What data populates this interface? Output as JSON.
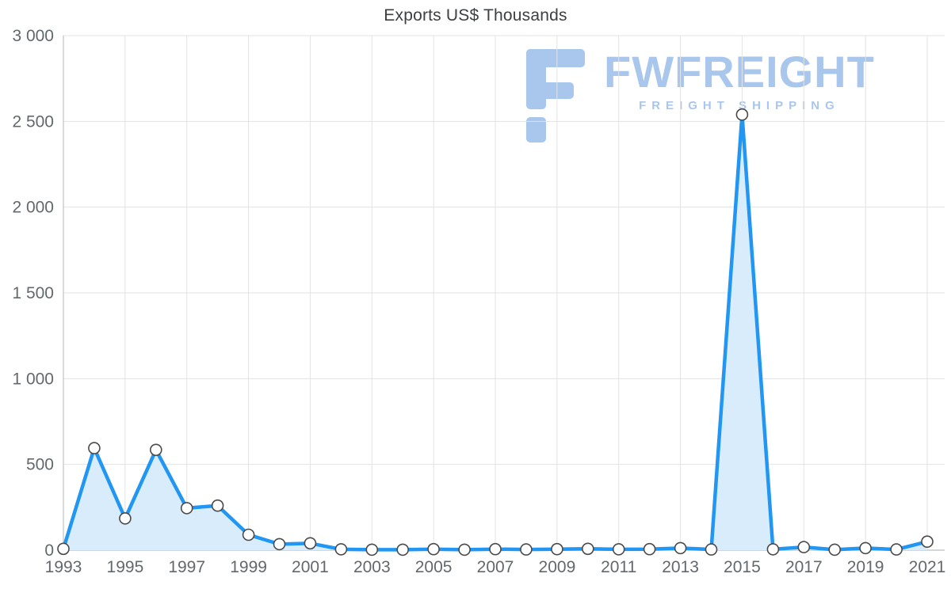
{
  "title": "Exports US$ Thousands",
  "watermark": {
    "brand": "FWFREIGHT",
    "tagline": "FREIGHT SHIPPING",
    "color": "#a5c3ec"
  },
  "colors": {
    "line": "#2196f3",
    "area": "#d9ecfc",
    "grid": "#e3e3e3",
    "axis": "#c9c9c9",
    "tick_text": "#63686d",
    "marker_fill": "#ffffff",
    "marker_stroke": "#4a4a4a"
  },
  "chart_data": {
    "type": "area",
    "title": "Exports US$ Thousands",
    "xlabel": "",
    "ylabel": "",
    "x": [
      1993,
      1994,
      1995,
      1996,
      1997,
      1998,
      1999,
      2000,
      2001,
      2002,
      2003,
      2004,
      2005,
      2006,
      2007,
      2008,
      2009,
      2010,
      2011,
      2012,
      2013,
      2014,
      2015,
      2016,
      2017,
      2018,
      2019,
      2020,
      2021
    ],
    "values": [
      8,
      595,
      185,
      585,
      245,
      260,
      90,
      35,
      40,
      5,
      3,
      3,
      6,
      3,
      6,
      4,
      6,
      8,
      5,
      6,
      12,
      4,
      2540,
      5,
      18,
      3,
      12,
      4,
      50
    ],
    "series_name": "Exports US$ Thousands",
    "ylim": [
      0,
      3000
    ],
    "yticks": [
      0,
      500,
      1000,
      1500,
      2000,
      2500,
      3000
    ],
    "ytick_labels": [
      "0",
      "500",
      "1 000",
      "1 500",
      "2 000",
      "2 500",
      "3 000"
    ],
    "xticks": [
      1993,
      1995,
      1997,
      1999,
      2001,
      2003,
      2005,
      2007,
      2009,
      2011,
      2013,
      2015,
      2017,
      2019,
      2021
    ],
    "xtick_labels": [
      "1993",
      "1995",
      "1997",
      "1999",
      "2001",
      "2003",
      "2005",
      "2007",
      "2009",
      "2011",
      "2013",
      "2015",
      "2017",
      "2019",
      "2021"
    ],
    "grid": true,
    "legend": false,
    "markers": true
  }
}
